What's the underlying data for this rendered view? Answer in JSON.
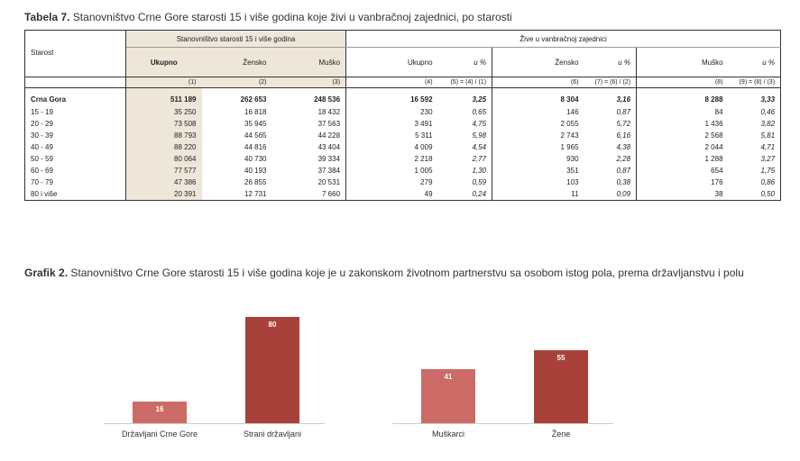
{
  "table": {
    "title_bold": "Tabela 7.",
    "title_text": " Stanovništvo Crne Gore starosti 15 i više godina koje živi u vanbračnoj zajednici, po starosti",
    "group1": "Stanovništvo starosti 15 i više godina",
    "group2": "Žive u vanbračnoj zajednici",
    "rowhead": "Starost",
    "columns": [
      "Ukupno",
      "Žensko",
      "Muško",
      "Ukupno",
      "u %",
      "Žensko",
      "u %",
      "Muško",
      "u %"
    ],
    "colnums": [
      "(1)",
      "(2)",
      "(3)",
      "(4)",
      "(5) = (4) / (1)",
      "(6)",
      "(7) = (6) / (2)",
      "(8)",
      "(9) = (8) / (3)"
    ],
    "rows": [
      [
        "Crna Gora",
        "511 189",
        "262 653",
        "248 536",
        "16 592",
        "3,25",
        "8 304",
        "3,16",
        "8 288",
        "3,33"
      ],
      [
        "15 - 19",
        "35 250",
        "16 818",
        "18 432",
        "230",
        "0,65",
        "146",
        "0,87",
        "84",
        "0,46"
      ],
      [
        "20 - 29",
        "73 508",
        "35 945",
        "37 563",
        "3 491",
        "4,75",
        "2 055",
        "5,72",
        "1 436",
        "3,82"
      ],
      [
        "30 - 39",
        "88 793",
        "44 565",
        "44 228",
        "5 311",
        "5,98",
        "2 743",
        "6,16",
        "2 568",
        "5,81"
      ],
      [
        "40 - 49",
        "88 220",
        "44 816",
        "43 404",
        "4 009",
        "4,54",
        "1 965",
        "4,38",
        "2 044",
        "4,71"
      ],
      [
        "50 - 59",
        "80 064",
        "40 730",
        "39 334",
        "2 218",
        "2,77",
        "930",
        "2,28",
        "1 288",
        "3,27"
      ],
      [
        "60 - 69",
        "77 577",
        "40 193",
        "37 384",
        "1 005",
        "1,30",
        "351",
        "0,87",
        "654",
        "1,75"
      ],
      [
        "70 - 79",
        "47 386",
        "26 855",
        "20 531",
        "279",
        "0,59",
        "103",
        "0,38",
        "176",
        "0,86"
      ],
      [
        "80 i više",
        "20 391",
        "12 731",
        "7 660",
        "49",
        "0,24",
        "11",
        "0,09",
        "38",
        "0,50"
      ]
    ]
  },
  "chart_title_bold": "Grafik 2.",
  "chart_title_text": " Stanovništvo Crne Gore starosti 15 i više godina koje je u zakonskom životnom partnerstvu sa osobom istog pola, prema državljanstvu i polu",
  "chart_data": [
    {
      "type": "bar",
      "categories": [
        "Državljani Crne Gore",
        "Strani državljani"
      ],
      "values": [
        16,
        80
      ],
      "colors": [
        "#cd6b66",
        "#a8413a"
      ]
    },
    {
      "type": "bar",
      "categories": [
        "Muškarci",
        "Žene"
      ],
      "values": [
        41,
        55
      ],
      "colors": [
        "#cd6b66",
        "#a8413a"
      ]
    }
  ]
}
